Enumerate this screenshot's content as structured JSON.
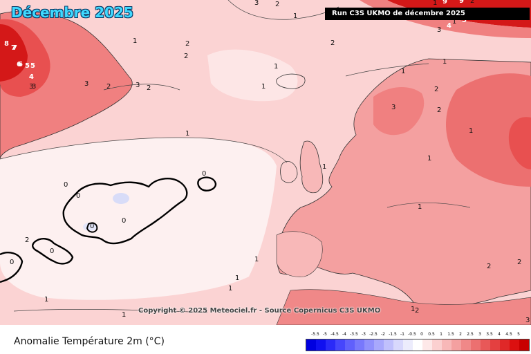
{
  "header": {
    "title": "Décembre 2025",
    "run_label": "Run C3S UKMO de décembre 2025"
  },
  "map": {
    "copyright": "Copyright © 2025 Meteociel.fr - Source Copernicus C3S UKMO",
    "contour_labels": [
      "3",
      "2",
      "1",
      "2",
      "2",
      "2",
      "1",
      "2",
      "1",
      "1",
      "2",
      "3",
      "2",
      "1",
      "1",
      "1",
      "1",
      "1",
      "2",
      "2",
      "3",
      "1",
      "2",
      "3",
      "2",
      "3",
      "2",
      "1",
      "1",
      "1",
      "1",
      "1",
      "1",
      "0",
      "0",
      "0",
      "0",
      "0",
      "0",
      "0",
      "1",
      "1",
      "1",
      "2",
      "3",
      "4",
      "5",
      "6",
      "7",
      "8",
      "3",
      "4",
      "5",
      "6",
      "7",
      "9",
      "9",
      "3",
      "4",
      "5"
    ],
    "colors": {
      "ocean_base": "#fbd3d3",
      "land_base": "#f4a0a0",
      "near_zero": "#fdf0f0",
      "warm": "#f08080",
      "warmer": "#e85050",
      "hot": "#d41818",
      "cold_patch": "#d8dcf8",
      "coast": "#333333",
      "zero_contour": "#000000"
    }
  },
  "legend": {
    "title": "Anomalie Température 2m (°C)",
    "ticks": [
      "-5.5",
      "-5",
      "-4.5",
      "-4",
      "-3.5",
      "-3",
      "-2.5",
      "-2",
      "-1.5",
      "-1",
      "-0.5",
      "0",
      "0.5",
      "1",
      "1.5",
      "2",
      "2.5",
      "3",
      "3.5",
      "4",
      "4.5",
      "5"
    ],
    "colors": [
      "#0000e0",
      "#1010f0",
      "#2a2af8",
      "#4646fc",
      "#6060fc",
      "#7878fc",
      "#9090fc",
      "#a8a8fc",
      "#c0c0fc",
      "#d8d8fc",
      "#ececfc",
      "#ffffff",
      "#fde8e8",
      "#fbd0d0",
      "#f8b8b8",
      "#f4a0a0",
      "#f08888",
      "#ec7070",
      "#e85858",
      "#e44040",
      "#e02828",
      "#dc1010",
      "#c80000"
    ]
  }
}
